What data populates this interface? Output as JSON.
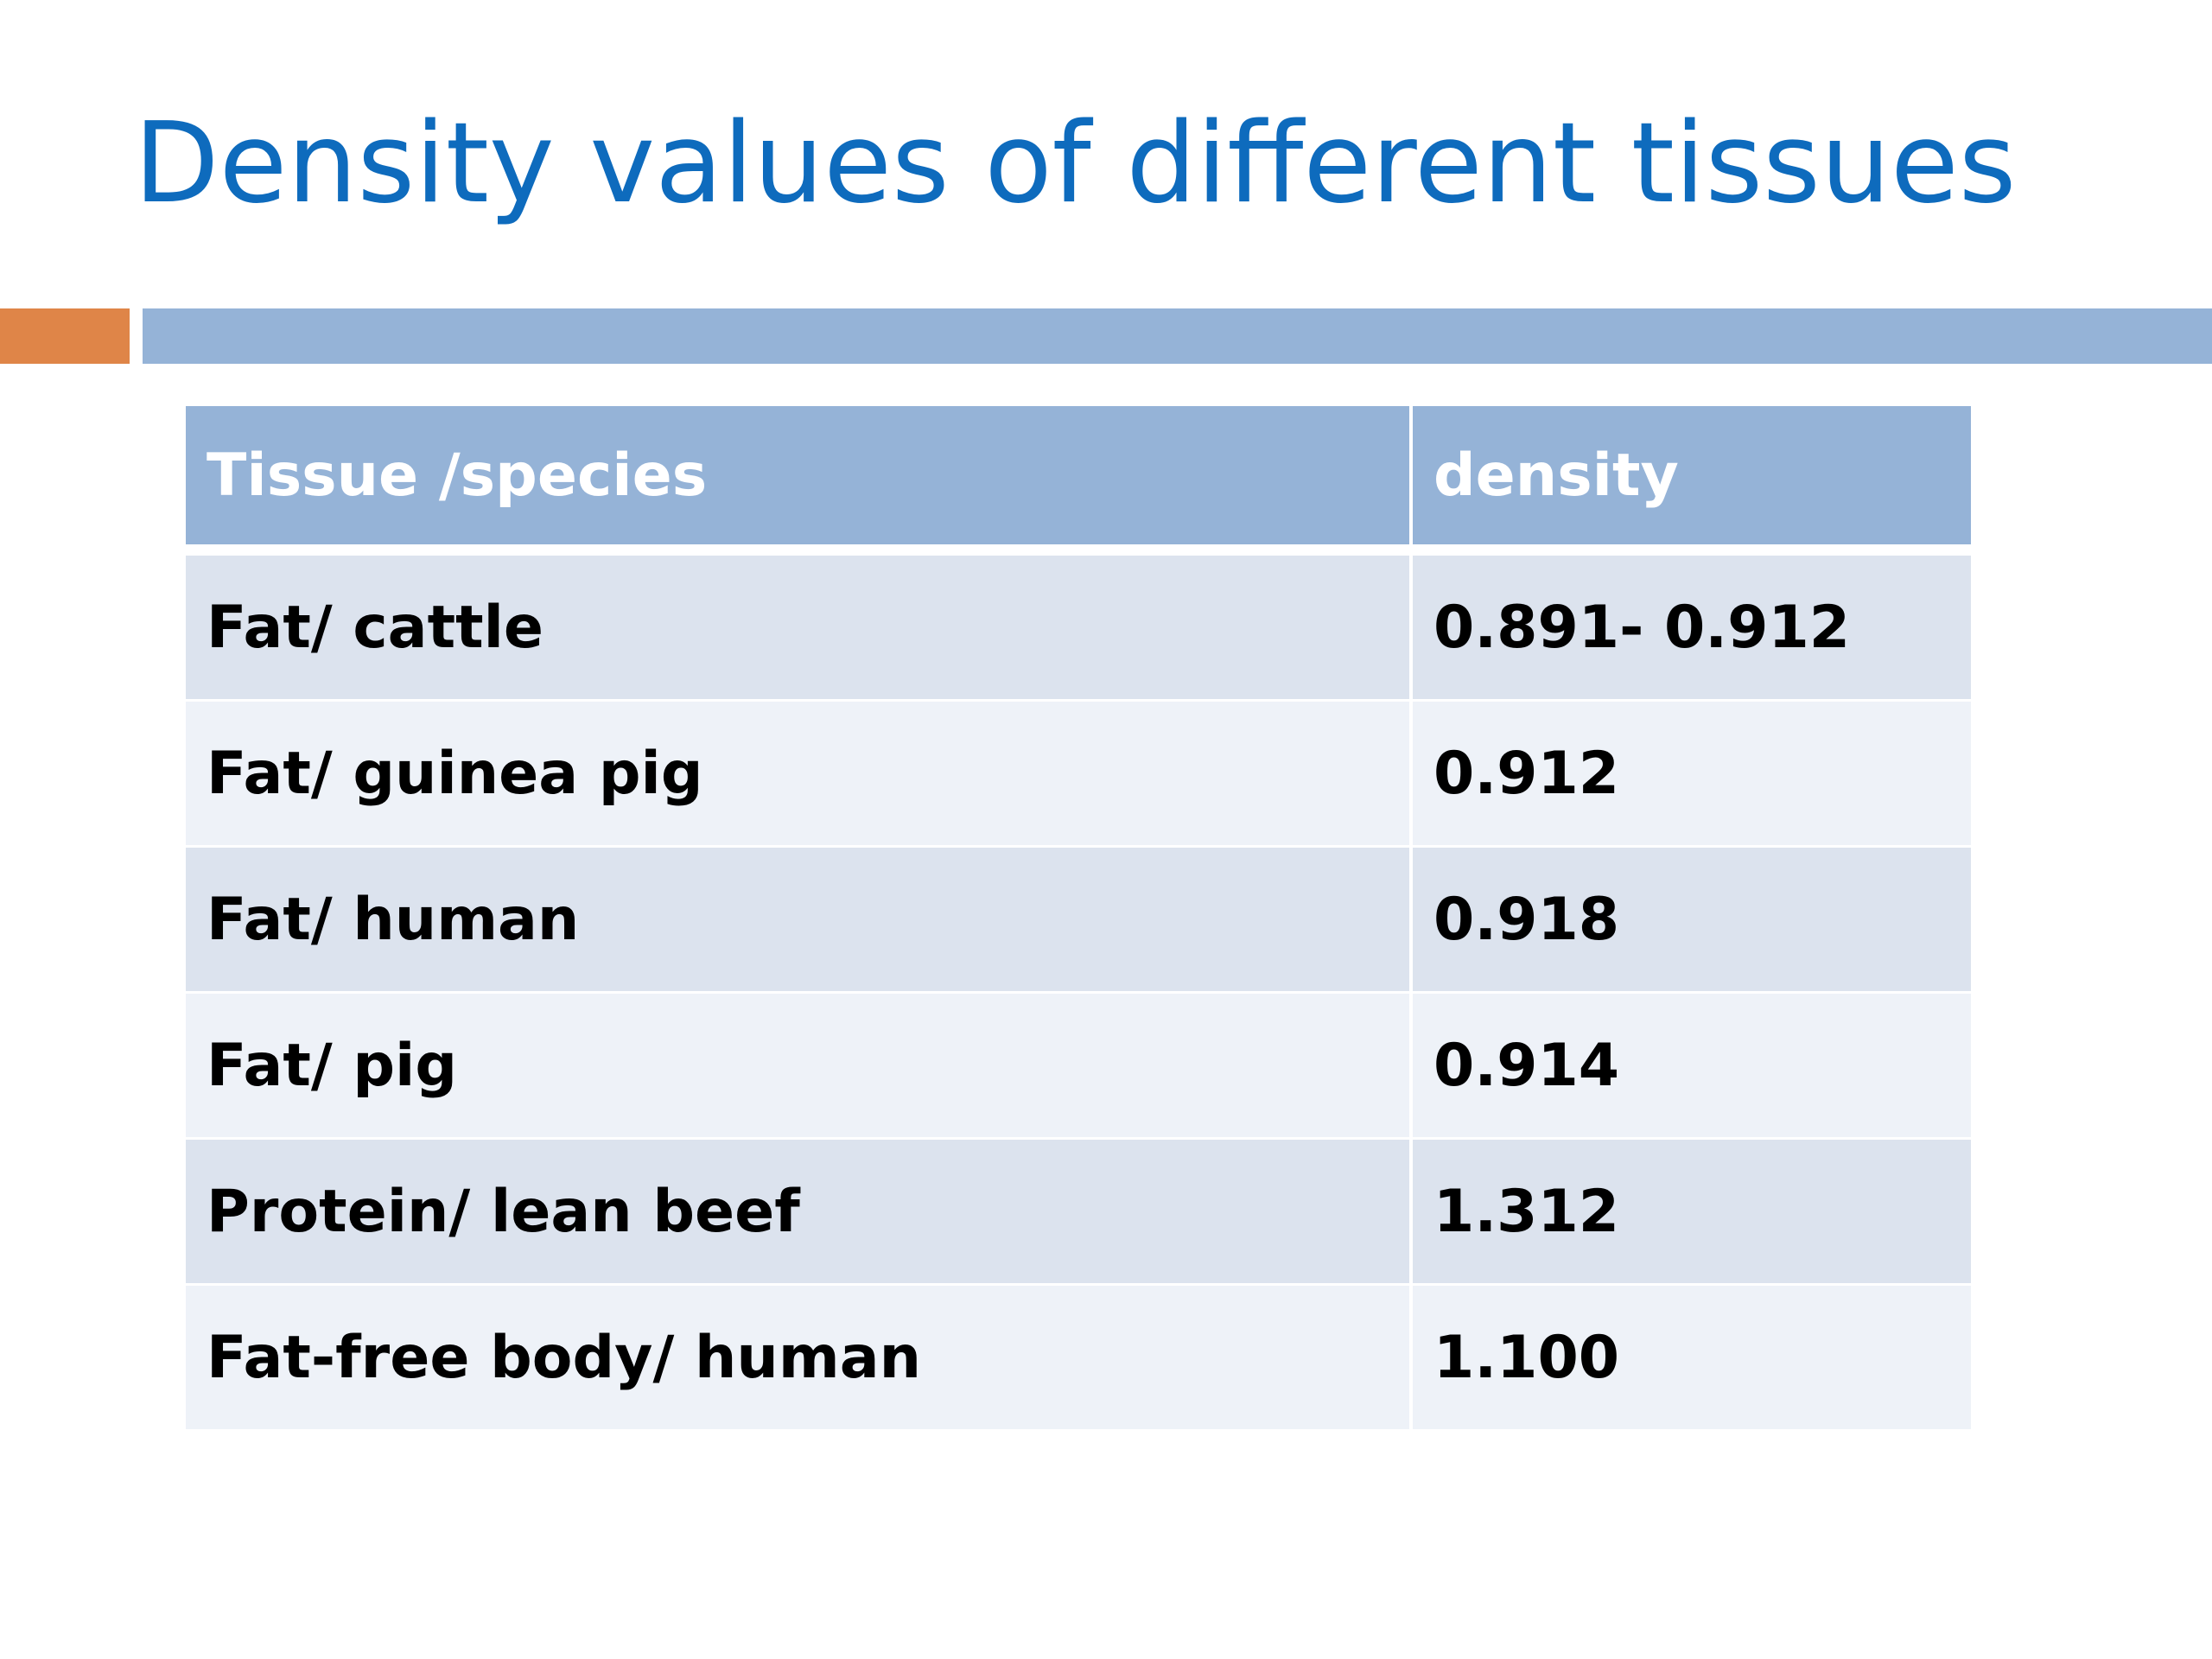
{
  "slide": {
    "title": "Density values of different tissues",
    "colors": {
      "title": "#0e6bbd",
      "accent": "#df8548",
      "rule": "#95b3d7",
      "header_bg": "#95b3d7",
      "row_band_1": "#dce3ee",
      "row_band_2": "#eef2f8"
    }
  },
  "table": {
    "headers": [
      "Tissue /species",
      "density"
    ],
    "rows": [
      [
        "Fat/ cattle",
        "0.891- 0.912"
      ],
      [
        "Fat/ guinea pig",
        "0.912"
      ],
      [
        "Fat/ human",
        "0.918"
      ],
      [
        "Fat/ pig",
        "0.914"
      ],
      [
        "Protein/ lean beef",
        "1.312"
      ],
      [
        "Fat-free body/ human",
        "1.100"
      ]
    ]
  }
}
